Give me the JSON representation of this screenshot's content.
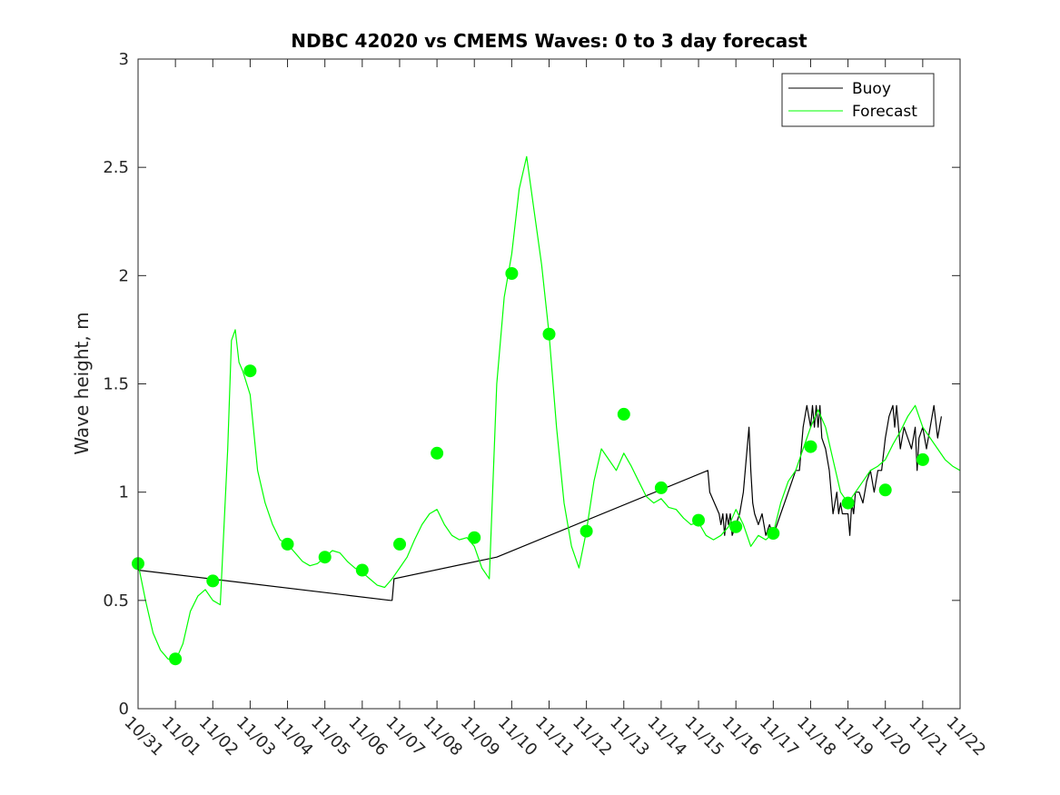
{
  "chart_data": {
    "type": "line",
    "title": "NDBC 42020 vs CMEMS Waves: 0 to 3 day forecast",
    "xlabel": "",
    "ylabel": "Wave height, m",
    "xlim": [
      0,
      22
    ],
    "ylim": [
      0,
      3
    ],
    "categories": [
      "10/31",
      "11/01",
      "11/02",
      "11/03",
      "11/04",
      "11/05",
      "11/06",
      "11/07",
      "11/08",
      "11/09",
      "11/10",
      "11/11",
      "11/12",
      "11/13",
      "11/14",
      "11/15",
      "11/16",
      "11/17",
      "11/18",
      "11/19",
      "11/20",
      "11/21",
      "11/22"
    ],
    "yticks": [
      0,
      0.5,
      1,
      1.5,
      2,
      2.5,
      3
    ],
    "ytick_labels": [
      "0",
      "0.5",
      "1",
      "1.5",
      "2",
      "2.5",
      "3"
    ],
    "grid": false,
    "legend_position": "top-right",
    "legend": [
      "Buoy",
      "Forecast"
    ],
    "colors": {
      "buoy": "#000000",
      "forecast": "#00ff00",
      "axis": "#262626"
    },
    "series": [
      {
        "name": "Buoy",
        "x": [
          0,
          6.75,
          6.8,
          6.85,
          9.6,
          15.25,
          15.3,
          15.55,
          15.6,
          15.65,
          15.7,
          15.75,
          15.8,
          15.85,
          15.9,
          16.1,
          16.2,
          16.3,
          16.35,
          16.4,
          16.45,
          16.5,
          16.6,
          16.7,
          16.8,
          16.9,
          17.0,
          17.2,
          17.3,
          17.5,
          17.6,
          17.7,
          17.75,
          17.8,
          17.9,
          18.0,
          18.05,
          18.1,
          18.15,
          18.2,
          18.25,
          18.3,
          18.4,
          18.5,
          18.6,
          18.7,
          18.75,
          18.8,
          18.85,
          18.9,
          19.0,
          19.05,
          19.1,
          19.15,
          19.2,
          19.3,
          19.4,
          19.5,
          19.6,
          19.7,
          19.8,
          19.9,
          20.0,
          20.1,
          20.2,
          20.25,
          20.3,
          20.4,
          20.5,
          20.6,
          20.7,
          20.8,
          20.85,
          20.9,
          21.0,
          21.1,
          21.2,
          21.3,
          21.4,
          21.5
        ],
        "values": [
          0.64,
          0.5,
          0.5,
          0.6,
          0.7,
          1.1,
          1.0,
          0.9,
          0.85,
          0.9,
          0.8,
          0.9,
          0.85,
          0.9,
          0.8,
          0.9,
          1.0,
          1.2,
          1.3,
          1.1,
          0.95,
          0.9,
          0.85,
          0.9,
          0.8,
          0.85,
          0.8,
          0.9,
          0.95,
          1.05,
          1.1,
          1.1,
          1.2,
          1.3,
          1.4,
          1.3,
          1.4,
          1.3,
          1.4,
          1.3,
          1.4,
          1.25,
          1.2,
          1.1,
          0.9,
          1.0,
          0.9,
          0.95,
          0.9,
          0.9,
          0.9,
          0.8,
          0.95,
          0.9,
          1.0,
          1.0,
          0.95,
          1.05,
          1.1,
          1.0,
          1.1,
          1.1,
          1.25,
          1.35,
          1.4,
          1.3,
          1.4,
          1.2,
          1.3,
          1.25,
          1.2,
          1.3,
          1.1,
          1.25,
          1.3,
          1.2,
          1.3,
          1.4,
          1.25,
          1.35
        ]
      },
      {
        "name": "Forecast",
        "x": [
          0,
          0.2,
          0.4,
          0.6,
          0.8,
          1.0,
          1.2,
          1.4,
          1.6,
          1.8,
          2.0,
          2.2,
          2.4,
          2.5,
          2.6,
          2.7,
          2.8,
          3.0,
          3.2,
          3.4,
          3.6,
          3.8,
          4.0,
          4.2,
          4.4,
          4.6,
          4.8,
          5.0,
          5.2,
          5.4,
          5.6,
          5.8,
          6.0,
          6.2,
          6.4,
          6.6,
          6.8,
          7.0,
          7.2,
          7.4,
          7.6,
          7.8,
          8.0,
          8.2,
          8.4,
          8.6,
          8.8,
          9.0,
          9.2,
          9.4,
          9.6,
          9.8,
          10.0,
          10.2,
          10.4,
          10.6,
          10.8,
          11.0,
          11.2,
          11.4,
          11.6,
          11.8,
          12.0,
          12.2,
          12.4,
          12.6,
          12.8,
          13.0,
          13.2,
          13.4,
          13.6,
          13.8,
          14.0,
          14.2,
          14.4,
          14.6,
          14.8,
          15.0,
          15.2,
          15.4,
          15.6,
          15.8,
          16.0,
          16.2,
          16.4,
          16.6,
          16.8,
          17.0,
          17.2,
          17.4,
          17.6,
          17.8,
          18.0,
          18.2,
          18.4,
          18.6,
          18.8,
          19.0,
          19.2,
          19.4,
          19.6,
          19.8,
          20.0,
          20.2,
          20.4,
          20.6,
          20.8,
          21.0,
          21.2,
          21.4,
          21.6,
          21.8,
          22.0
        ],
        "values": [
          0.67,
          0.5,
          0.35,
          0.27,
          0.23,
          0.22,
          0.3,
          0.45,
          0.52,
          0.55,
          0.5,
          0.48,
          1.2,
          1.7,
          1.75,
          1.6,
          1.56,
          1.45,
          1.1,
          0.95,
          0.85,
          0.78,
          0.76,
          0.72,
          0.68,
          0.66,
          0.67,
          0.7,
          0.73,
          0.72,
          0.68,
          0.65,
          0.63,
          0.6,
          0.57,
          0.56,
          0.6,
          0.65,
          0.7,
          0.78,
          0.85,
          0.9,
          0.92,
          0.85,
          0.8,
          0.78,
          0.79,
          0.75,
          0.65,
          0.6,
          1.5,
          1.9,
          2.1,
          2.4,
          2.55,
          2.3,
          2.05,
          1.73,
          1.3,
          0.95,
          0.75,
          0.65,
          0.82,
          1.05,
          1.2,
          1.15,
          1.1,
          1.18,
          1.12,
          1.05,
          0.98,
          0.95,
          0.97,
          0.93,
          0.92,
          0.88,
          0.85,
          0.86,
          0.8,
          0.78,
          0.8,
          0.84,
          0.92,
          0.85,
          0.75,
          0.8,
          0.78,
          0.81,
          0.95,
          1.05,
          1.1,
          1.2,
          1.3,
          1.38,
          1.3,
          1.15,
          1.0,
          0.95,
          1.0,
          1.05,
          1.1,
          1.12,
          1.15,
          1.22,
          1.28,
          1.35,
          1.4,
          1.3,
          1.25,
          1.2,
          1.15,
          1.12,
          1.1
        ]
      }
    ],
    "forecast_markers": {
      "x": [
        0,
        1,
        2,
        3,
        4,
        5,
        6,
        7,
        8,
        9,
        10,
        11,
        12,
        13,
        14,
        15,
        16,
        17,
        18,
        19,
        20,
        21
      ],
      "values": [
        0.67,
        0.23,
        0.59,
        1.56,
        0.76,
        0.7,
        0.64,
        0.76,
        1.18,
        0.79,
        2.01,
        1.73,
        0.82,
        1.36,
        1.02,
        0.87,
        0.84,
        0.81,
        1.21,
        0.95,
        1.01,
        1.15
      ]
    }
  }
}
